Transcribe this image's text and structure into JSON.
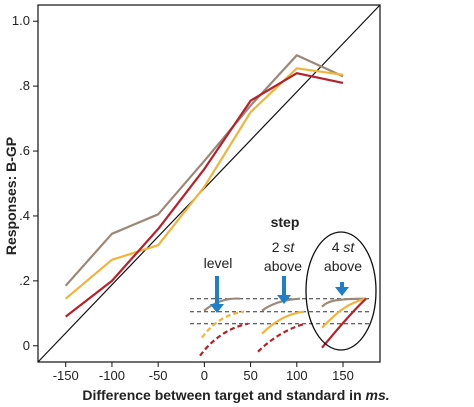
{
  "chart_data": {
    "type": "line",
    "title": "",
    "xlabel_main": "Difference between target and standard in ",
    "xlabel_unit": "ms.",
    "ylabel": "Responses: B-GP",
    "xlim": [
      -180,
      190
    ],
    "ylim": [
      -0.05,
      1.05
    ],
    "x_ticks": [
      -150,
      -100,
      -50,
      0,
      50,
      100,
      150
    ],
    "x_tick_labels": [
      "-150",
      "-100",
      "-50",
      "0",
      "50",
      "100",
      "150"
    ],
    "y_ticks": [
      0,
      0.2,
      0.4,
      0.6,
      0.8,
      1.0
    ],
    "y_tick_labels": [
      "0",
      ".2",
      ".4",
      ".6",
      ".8",
      "1.0"
    ],
    "grid": false,
    "reference_line": {
      "x": [
        -180,
        190
      ],
      "y": [
        -0.05,
        1.05
      ]
    },
    "colors": {
      "gray": "#9c8878",
      "orange": "#f2b33a",
      "red": "#b8202b",
      "arrow": "#1e7ec8",
      "reference": "#111111"
    },
    "series": [
      {
        "color": "gray",
        "x": [
          -150,
          -100,
          -50,
          0,
          50,
          100,
          150
        ],
        "y": [
          0.185,
          0.345,
          0.405,
          0.57,
          0.74,
          0.895,
          0.83
        ]
      },
      {
        "color": "orange",
        "x": [
          -150,
          -100,
          -50,
          0,
          50,
          100,
          150
        ],
        "y": [
          0.145,
          0.265,
          0.31,
          0.49,
          0.72,
          0.855,
          0.835
        ]
      },
      {
        "color": "red",
        "x": [
          -150,
          -100,
          -50,
          0,
          50,
          100,
          150
        ],
        "y": [
          0.09,
          0.2,
          0.36,
          0.545,
          0.755,
          0.84,
          0.81
        ]
      }
    ],
    "inset": {
      "title": "step",
      "labels": {
        "level": "level",
        "two_st_num": "2 ",
        "two_st_var": "st",
        "two_st_above": "above",
        "four_st_num": "4 ",
        "four_st_var": "st",
        "four_st_above": "above"
      },
      "dashed_levels": [
        0.145,
        0.105,
        0.068
      ]
    }
  }
}
